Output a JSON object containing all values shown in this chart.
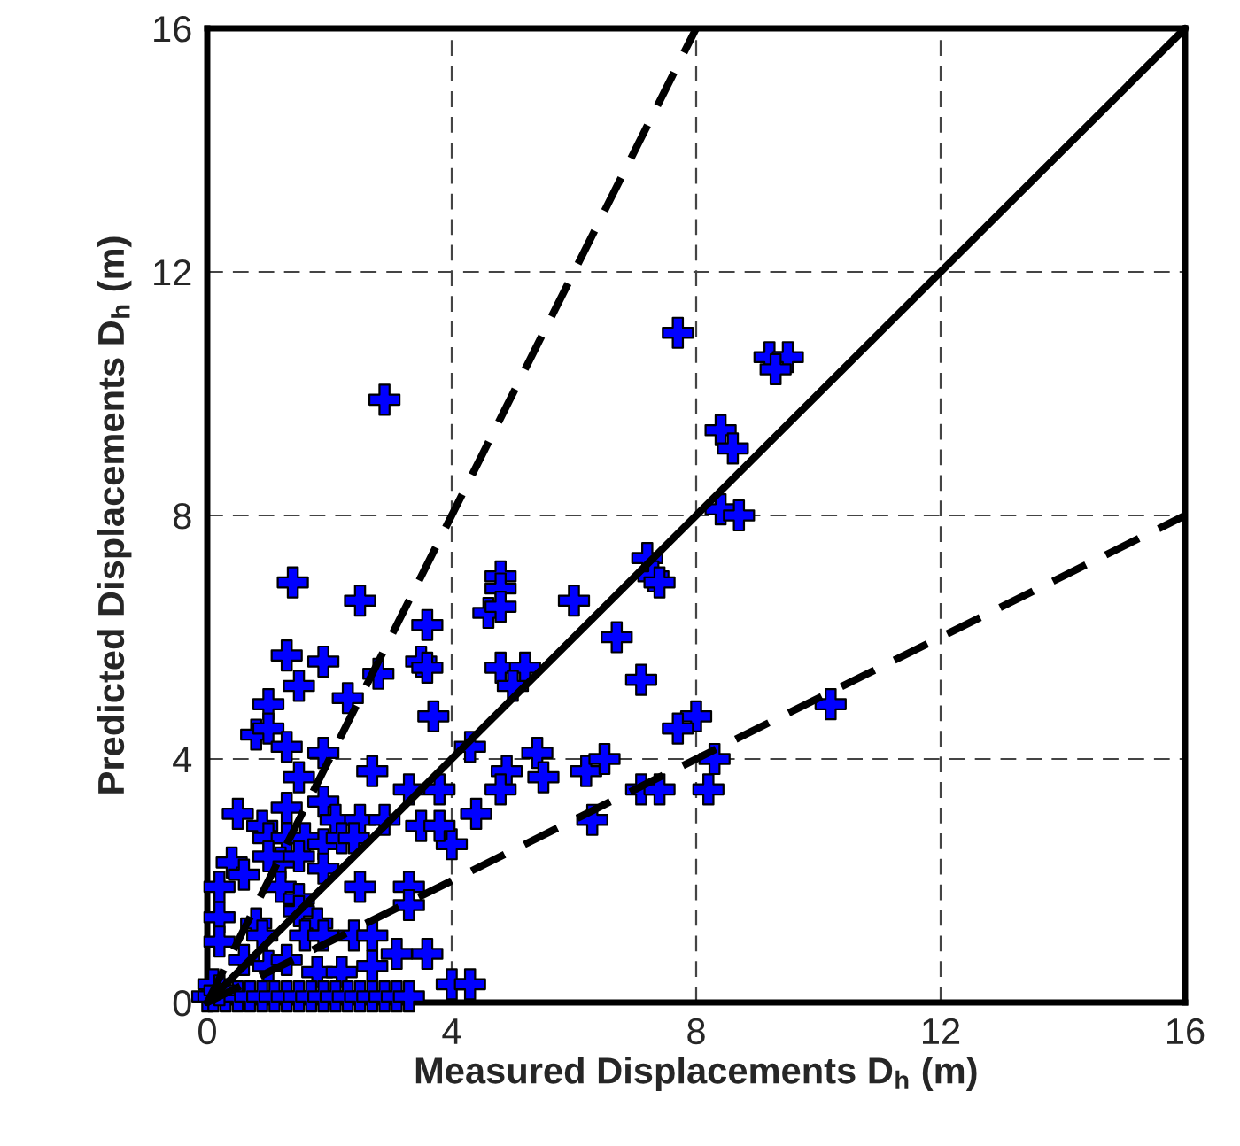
{
  "chart_data": {
    "type": "scatter",
    "xlabel": "Measured Displacements D$_{h}$ (m)",
    "ylabel": "Predicted Displacements D$_{h}$ (m)",
    "xlim": [
      0,
      16
    ],
    "ylim": [
      0,
      16
    ],
    "xticks": [
      0,
      4,
      8,
      12,
      16
    ],
    "yticks": [
      0,
      4,
      8,
      12,
      16
    ],
    "grid": true,
    "legend": false,
    "series": [
      {
        "type": "line",
        "color": "#000000",
        "line_style": "dashed",
        "marker": "none",
        "x": [
          0,
          8
        ],
        "values": [
          0,
          16
        ]
      },
      {
        "type": "line",
        "color": "#000000",
        "line_style": "solid",
        "marker": "none",
        "x": [
          0,
          16
        ],
        "values": [
          0,
          16
        ]
      },
      {
        "type": "line",
        "color": "#000000",
        "line_style": "dashed",
        "marker": "none",
        "x": [
          0,
          16
        ],
        "values": [
          0,
          8
        ]
      },
      {
        "color": "#0000ff",
        "marker": "cross",
        "x": [
          2.9,
          7.7,
          9.2,
          9.5,
          9.3,
          8.4,
          8.6,
          8.4,
          8.7,
          10.2,
          8.0,
          7.7,
          8.3,
          8.2,
          7.2,
          7.3,
          7.4,
          6.0,
          4.8,
          4.8,
          4.6,
          4.8,
          6.7,
          4.8,
          5.2,
          5.0,
          7.1,
          4.3,
          5.4,
          4.9,
          5.5,
          4.8,
          6.2,
          6.5,
          4.4,
          6.3,
          7.1,
          7.4,
          4.0,
          4.0,
          4.3,
          1.4,
          2.5,
          3.6,
          1.3,
          1.9,
          1.5,
          2.3,
          2.8,
          3.5,
          3.6,
          3.7,
          1.0,
          0.8,
          1.0,
          1.3,
          1.9,
          2.7,
          1.5,
          3.3,
          3.8,
          0.5,
          1.3,
          1.9,
          2.1,
          2.5,
          2.9,
          3.5,
          3.8,
          0.9,
          1.0,
          1.3,
          1.6,
          1.9,
          2.2,
          2.4,
          0.4,
          0.6,
          1.2,
          1.5,
          1.9,
          1.0,
          0.2,
          1.2,
          2.5,
          3.3,
          3.3,
          1.5,
          0.2,
          0.8,
          1.5,
          1.8,
          0.9,
          1.6,
          1.9,
          2.4,
          2.7,
          0.2,
          0.6,
          1.0,
          1.3,
          1.8,
          2.2,
          2.7,
          3.1,
          3.6,
          0.0,
          0.1,
          0.3,
          0.5,
          0.7,
          0.9,
          1.1,
          1.3,
          1.5,
          1.7,
          1.9,
          2.1,
          2.3,
          2.5,
          2.7,
          2.9,
          3.1,
          3.3,
          0.1,
          0.2
        ],
        "values": [
          9.9,
          11.0,
          10.6,
          10.6,
          10.4,
          9.4,
          9.1,
          8.1,
          8.0,
          4.9,
          4.7,
          4.5,
          4.0,
          3.5,
          7.3,
          7.0,
          6.9,
          6.6,
          7.0,
          6.8,
          6.4,
          6.5,
          6.0,
          5.5,
          5.5,
          5.2,
          5.3,
          4.2,
          4.1,
          3.8,
          3.7,
          3.5,
          3.8,
          4.0,
          3.1,
          3.0,
          3.5,
          3.5,
          2.6,
          0.3,
          0.3,
          6.9,
          6.6,
          6.2,
          5.7,
          5.6,
          5.2,
          5.0,
          5.4,
          5.6,
          5.5,
          4.7,
          4.9,
          4.4,
          4.5,
          4.2,
          4.1,
          3.8,
          3.7,
          3.5,
          3.5,
          3.1,
          3.2,
          3.3,
          3.0,
          3.0,
          3.0,
          2.9,
          2.9,
          2.9,
          2.7,
          2.7,
          2.7,
          2.6,
          2.7,
          2.7,
          2.3,
          2.1,
          2.3,
          2.4,
          2.2,
          2.4,
          1.9,
          1.9,
          1.9,
          1.9,
          1.6,
          1.7,
          1.4,
          1.3,
          1.5,
          1.3,
          1.1,
          1.1,
          1.1,
          1.1,
          1.1,
          1.0,
          0.7,
          0.6,
          0.7,
          0.5,
          0.5,
          0.6,
          0.8,
          0.8,
          0.1,
          0.1,
          0.1,
          0.1,
          0.1,
          0.1,
          0.1,
          0.1,
          0.1,
          0.1,
          0.1,
          0.1,
          0.1,
          0.1,
          0.1,
          0.1,
          0.1,
          0.1,
          0.3,
          0.2
        ]
      }
    ]
  }
}
